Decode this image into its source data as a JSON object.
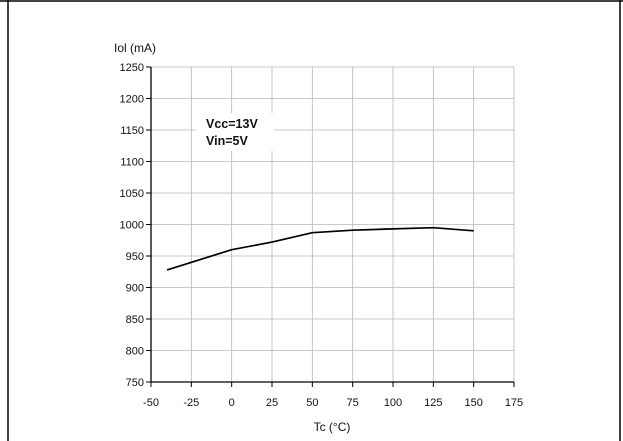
{
  "chart_data": {
    "type": "line",
    "title": "",
    "ylabel": "Iol (mA)",
    "xlabel": "Tc (°C)",
    "xlim": [
      -50,
      175
    ],
    "ylim": [
      750,
      1250
    ],
    "xticks": [
      -50,
      -25,
      0,
      25,
      50,
      75,
      100,
      125,
      150,
      175
    ],
    "yticks": [
      750,
      800,
      850,
      900,
      950,
      1000,
      1050,
      1100,
      1150,
      1200,
      1250
    ],
    "grid": true,
    "annotations": [
      "Vcc=13V",
      "Vin=5V"
    ],
    "series": [
      {
        "x": [
          -40,
          0,
          25,
          50,
          75,
          100,
          125,
          150
        ],
        "y": [
          928,
          960,
          972,
          987,
          991,
          993,
          995,
          990
        ],
        "color": "#000000"
      }
    ]
  }
}
